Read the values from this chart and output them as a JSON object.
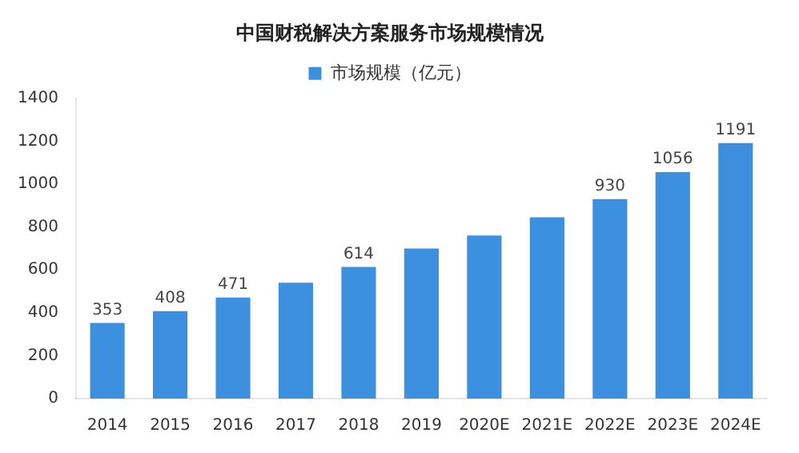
{
  "chart_data": {
    "type": "bar",
    "title": "中国财税解决方案服务市场规模情况",
    "categories": [
      "2014",
      "2015",
      "2016",
      "2017",
      "2018",
      "2019",
      "2020E",
      "2021E",
      "2022E",
      "2023E",
      "2024E"
    ],
    "series": [
      {
        "name": "市场规模（亿元）",
        "color": "#3d8fe0",
        "values": [
          353,
          408,
          471,
          540,
          614,
          700,
          760,
          845,
          930,
          1056,
          1191
        ],
        "value_labels": [
          "353",
          "408",
          "471",
          null,
          "614",
          null,
          null,
          null,
          "930",
          "1056",
          "1191"
        ]
      }
    ],
    "ylim": [
      0,
      1400
    ],
    "yticks": [
      0,
      200,
      400,
      600,
      800,
      1000,
      1200,
      1400
    ],
    "grid": false,
    "legend": "top"
  }
}
